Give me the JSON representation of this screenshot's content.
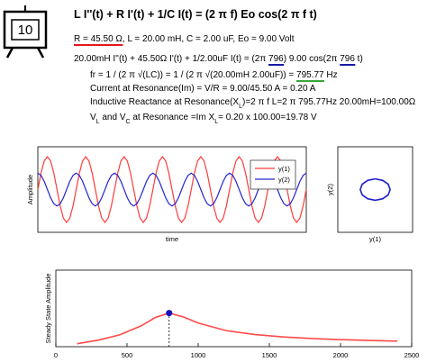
{
  "slide_number": "10",
  "title": "L I''(t) + R I'(t) + 1/C I(t) = (2 π f) Eo cos(2 π f t)",
  "lines": [
    [
      {
        "text": "R = 45.50 Ω",
        "underline": "#e8161b"
      },
      {
        "text": ", L = 20.00 mH, C = 2.00 uF, Eo = 9.00 Volt"
      }
    ],
    [
      {
        "text": "20.00mH I''(t) + 45.50Ω I'(t) + 1/2.00uF I(t) = (2π "
      },
      {
        "text": "796",
        "underline": "#1a1aa8"
      },
      {
        "text": ") 9.00 cos(2π "
      },
      {
        "text": "796",
        "underline": "#1a1aa8"
      },
      {
        "text": " t)"
      }
    ],
    [
      {
        "text": "fr = 1 / (2 π √(LC)) = 1 / (2 π √(20.00mH 2.00uF)) = "
      },
      {
        "text": "795.77",
        "underline": "#3aa53a"
      },
      {
        "text": " Hz"
      }
    ],
    [
      {
        "text": "Current at Resonance(Im) = V/R = 9.00/45.50 A = 0.20 A"
      }
    ],
    [
      {
        "text": "Inductive Reactance at Resonance(X"
      },
      {
        "text": "L",
        "sub": true
      },
      {
        "text": ")=2 π f L=2 π 795.77Hz 20.00mH=100.00Ω"
      }
    ],
    [
      {
        "text": "V"
      },
      {
        "text": "L",
        "sub": true
      },
      {
        "text": " and V"
      },
      {
        "text": "C",
        "sub": true
      },
      {
        "text": " at Resonance =Im X"
      },
      {
        "text": "L",
        "sub": true
      },
      {
        "text": "= 0.20 x 100.00=19.78 V"
      }
    ]
  ],
  "chart_data": [
    {
      "type": "line",
      "x_label": "time",
      "y_label": "Amplitude",
      "ylim": [
        -1.3,
        1.3
      ],
      "legend": "upper right",
      "series": [
        {
          "name": "y(1)",
          "color": "#ff3b3b",
          "values": [
            0,
            0.5,
            0.87,
            1,
            0.87,
            0.5,
            0,
            -0.5,
            -0.87,
            -1,
            -0.87,
            -0.5,
            0,
            0.5,
            0.87,
            1,
            0.87,
            0.5,
            0,
            -0.5,
            -0.87,
            -1,
            -0.87,
            -0.5,
            0,
            0.5,
            0.87,
            1,
            0.87,
            0.5,
            0,
            -0.5,
            -0.87,
            -1,
            -0.87,
            -0.5,
            0,
            0.5,
            0.87,
            1,
            0.87,
            0.5,
            0,
            -0.5,
            -0.87,
            -1,
            -0.87,
            -0.5,
            0,
            0.5,
            0.87,
            1,
            0.87,
            0.5,
            0,
            -0.5,
            -0.87,
            -1,
            -0.87,
            -0.5,
            0,
            0.5,
            0.87,
            1,
            0.87,
            0.5,
            0,
            -0.5,
            -0.87,
            -1,
            -0.87,
            -0.5,
            0,
            0.5,
            0.87,
            1,
            0.87,
            0.5,
            0,
            -0.5,
            -0.87,
            -1,
            -0.87,
            -0.5,
            0
          ]
        },
        {
          "name": "y(2)",
          "color": "#2626d0",
          "values": [
            0.5,
            0.43,
            0.25,
            0,
            -0.25,
            -0.43,
            -0.5,
            -0.43,
            -0.25,
            0,
            0.25,
            0.43,
            0.5,
            0.43,
            0.25,
            0,
            -0.25,
            -0.43,
            -0.5,
            -0.43,
            -0.25,
            0,
            0.25,
            0.43,
            0.5,
            0.43,
            0.25,
            0,
            -0.25,
            -0.43,
            -0.5,
            -0.43,
            -0.25,
            0,
            0.25,
            0.43,
            0.5,
            0.43,
            0.25,
            0,
            -0.25,
            -0.43,
            -0.5,
            -0.43,
            -0.25,
            0,
            0.25,
            0.43,
            0.5,
            0.43,
            0.25,
            0,
            -0.25,
            -0.43,
            -0.5,
            -0.43,
            -0.25,
            0,
            0.25,
            0.43,
            0.5,
            0.43,
            0.25,
            0,
            -0.25,
            -0.43,
            -0.5,
            -0.43,
            -0.25,
            0,
            0.25,
            0.43,
            0.5,
            0.43,
            0.25,
            0,
            -0.25,
            -0.43,
            -0.5,
            -0.43,
            -0.25,
            0,
            0.25,
            0.43,
            0.5
          ]
        }
      ]
    },
    {
      "type": "line",
      "x_label": "y(1)",
      "y_label": "y(2)",
      "xlim": [
        -2.5,
        2.5
      ],
      "ylim": [
        -2,
        2
      ],
      "color": "#2020c8",
      "x": [
        0,
        0.5,
        0.87,
        1,
        0.87,
        0.5,
        0,
        -0.5,
        -0.87,
        -1,
        -0.87,
        -0.5,
        0
      ],
      "values": [
        0.5,
        0.43,
        0.25,
        0,
        -0.25,
        -0.43,
        -0.5,
        -0.43,
        -0.25,
        0,
        0.25,
        0.43,
        0.5
      ]
    },
    {
      "type": "line",
      "y_label": "Steady State Amplitude",
      "xlim": [
        0,
        2500
      ],
      "xticks": [
        0,
        500,
        1000,
        1500,
        2000,
        2500
      ],
      "ylim": [
        0,
        0.45
      ],
      "color": "#ff4a4a",
      "x": [
        150,
        300,
        450,
        600,
        700,
        796,
        900,
        1000,
        1200,
        1400,
        1600,
        1800,
        2000,
        2200,
        2400
      ],
      "values": [
        0.0175,
        0.0388,
        0.07,
        0.123,
        0.172,
        0.198,
        0.174,
        0.139,
        0.094,
        0.071,
        0.057,
        0.048,
        0.0416,
        0.0368,
        0.033
      ],
      "highlight": {
        "x": 796,
        "y": 0.198,
        "color": "#1010c0"
      }
    }
  ]
}
